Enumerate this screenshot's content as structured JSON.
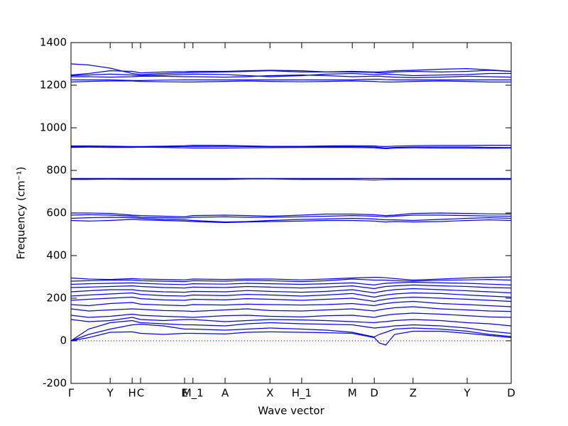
{
  "chart_data": {
    "type": "line",
    "ylabel": "Frequency (cm⁻¹)",
    "xlabel": "Wave vector",
    "xlim": [
      0,
      1
    ],
    "xticks": [
      {
        "value": 0,
        "label": "Γ"
      },
      {
        "value": 0.089,
        "label": "Y"
      },
      {
        "value": 0.139,
        "label": "H"
      },
      {
        "value": 0.158,
        "label": "C"
      },
      {
        "value": 0.258,
        "label": "E"
      },
      {
        "value": 0.277,
        "label": "M_1"
      },
      {
        "value": 0.35,
        "label": "A"
      },
      {
        "value": 0.452,
        "label": "X"
      },
      {
        "value": 0.524,
        "label": "H_1"
      },
      {
        "value": 0.639,
        "label": "M"
      },
      {
        "value": 0.689,
        "label": "D"
      },
      {
        "value": 0.777,
        "label": "Z"
      },
      {
        "value": 0.9,
        "label": "Y"
      },
      {
        "value": 1.0,
        "label": "D"
      }
    ],
    "ylim": [
      -200,
      1400
    ],
    "yticks": [
      -200,
      0,
      200,
      400,
      600,
      800,
      1000,
      1200,
      1400
    ],
    "zero_line": true,
    "zero_line_color": "#0000ff",
    "x": [
      0,
      0.04,
      0.089,
      0.139,
      0.158,
      0.21,
      0.258,
      0.277,
      0.35,
      0.4,
      0.452,
      0.524,
      0.58,
      0.639,
      0.689,
      0.7,
      0.715,
      0.735,
      0.777,
      0.84,
      0.9,
      0.95,
      1.0
    ],
    "series": [
      {
        "color": "#0000ff",
        "values": [
          0,
          15,
          40,
          42,
          35,
          30,
          35,
          35,
          32,
          40,
          42,
          40,
          38,
          35,
          15,
          -10,
          -20,
          30,
          45,
          45,
          35,
          25,
          15
        ]
      },
      {
        "color": "#0000ff",
        "values": [
          0,
          30,
          55,
          75,
          78,
          70,
          55,
          55,
          50,
          55,
          60,
          55,
          50,
          40,
          18,
          30,
          40,
          55,
          60,
          55,
          45,
          30,
          20
        ]
      },
      {
        "color": "#0000ff",
        "values": [
          0,
          55,
          85,
          95,
          85,
          80,
          75,
          75,
          70,
          80,
          85,
          80,
          78,
          75,
          60,
          62,
          65,
          70,
          75,
          70,
          60,
          45,
          35
        ]
      },
      {
        "color": "#0000ff",
        "values": [
          100,
          90,
          95,
          110,
          100,
          95,
          100,
          100,
          90,
          95,
          100,
          98,
          95,
          90,
          85,
          88,
          90,
          95,
          100,
          95,
          85,
          80,
          70
        ]
      },
      {
        "color": "#0000ff",
        "values": [
          120,
          110,
          115,
          125,
          120,
          115,
          112,
          110,
          118,
          120,
          115,
          112,
          118,
          120,
          110,
          115,
          120,
          125,
          130,
          125,
          118,
          112,
          110
        ]
      },
      {
        "color": "#0000ff",
        "values": [
          150,
          140,
          145,
          150,
          148,
          142,
          140,
          138,
          145,
          150,
          142,
          140,
          145,
          150,
          140,
          145,
          150,
          155,
          160,
          150,
          145,
          140,
          138
        ]
      },
      {
        "color": "#0000ff",
        "values": [
          170,
          165,
          175,
          180,
          172,
          168,
          165,
          170,
          168,
          172,
          170,
          168,
          170,
          175,
          165,
          170,
          175,
          180,
          185,
          175,
          170,
          165,
          160
        ]
      },
      {
        "color": "#0000ff",
        "values": [
          190,
          195,
          200,
          205,
          198,
          192,
          190,
          195,
          192,
          198,
          195,
          190,
          195,
          200,
          185,
          190,
          195,
          200,
          205,
          200,
          195,
          190,
          185
        ]
      },
      {
        "color": "#0000ff",
        "values": [
          210,
          215,
          220,
          225,
          218,
          212,
          210,
          215,
          212,
          218,
          215,
          210,
          215,
          222,
          205,
          210,
          215,
          220,
          225,
          222,
          215,
          210,
          205
        ]
      },
      {
        "color": "#0000ff",
        "values": [
          230,
          235,
          240,
          240,
          235,
          230,
          228,
          232,
          230,
          236,
          232,
          228,
          232,
          240,
          225,
          230,
          235,
          240,
          245,
          240,
          235,
          230,
          225
        ]
      },
      {
        "color": "#0000ff",
        "values": [
          250,
          252,
          255,
          258,
          255,
          250,
          248,
          252,
          250,
          255,
          252,
          248,
          252,
          258,
          245,
          250,
          255,
          258,
          262,
          258,
          255,
          250,
          248
        ]
      },
      {
        "color": "#0000ff",
        "values": [
          265,
          268,
          270,
          272,
          270,
          266,
          264,
          268,
          266,
          270,
          268,
          265,
          268,
          272,
          262,
          266,
          270,
          272,
          275,
          272,
          270,
          266,
          262
        ]
      },
      {
        "color": "#0000ff",
        "values": [
          280,
          282,
          285,
          285,
          282,
          280,
          278,
          282,
          280,
          284,
          282,
          278,
          282,
          290,
          285,
          285,
          285,
          282,
          280,
          284,
          286,
          288,
          285
        ]
      },
      {
        "color": "#0000ff",
        "values": [
          295,
          290,
          288,
          292,
          290,
          288,
          286,
          290,
          288,
          290,
          290,
          286,
          290,
          295,
          298,
          298,
          296,
          292,
          285,
          290,
          295,
          298,
          300
        ]
      },
      {
        "color": "#0000ff",
        "values": [
          600,
          600,
          598,
          590,
          588,
          585,
          582,
          588,
          590,
          588,
          585,
          590,
          595,
          595,
          592,
          590,
          588,
          590,
          598,
          600,
          598,
          596,
          595
        ]
      },
      {
        "color": "#0000ff",
        "values": [
          590,
          592,
          590,
          585,
          580,
          578,
          576,
          580,
          582,
          580,
          580,
          582,
          585,
          588,
          585,
          584,
          582,
          585,
          590,
          590,
          588,
          586,
          585
        ]
      },
      {
        "color": "#0000ff",
        "values": [
          575,
          578,
          580,
          578,
          575,
          570,
          568,
          565,
          558,
          560,
          565,
          570,
          572,
          575,
          572,
          570,
          568,
          568,
          565,
          570,
          575,
          578,
          575
        ]
      },
      {
        "color": "#0000ff",
        "values": [
          565,
          562,
          565,
          570,
          568,
          565,
          562,
          560,
          555,
          558,
          560,
          562,
          565,
          565,
          562,
          560,
          558,
          560,
          558,
          560,
          565,
          568,
          565
        ]
      },
      {
        "color": "#0000ff",
        "values": [
          762,
          762,
          762,
          762,
          762,
          762,
          762,
          762,
          762,
          762,
          762,
          762,
          762,
          762,
          762,
          762,
          762,
          762,
          762,
          762,
          762,
          762,
          762
        ]
      },
      {
        "color": "#0000ff",
        "values": [
          758,
          758,
          759,
          758,
          758,
          758,
          758,
          758,
          758,
          760,
          760,
          758,
          758,
          758,
          755,
          756,
          757,
          758,
          758,
          758,
          758,
          758,
          758
        ]
      },
      {
        "color": "#0000ff",
        "values": [
          915,
          915,
          914,
          912,
          912,
          914,
          916,
          918,
          917,
          915,
          913,
          913,
          915,
          916,
          915,
          913,
          912,
          914,
          916,
          917,
          917,
          918,
          918
        ]
      },
      {
        "color": "#0000ff",
        "values": [
          912,
          911,
          910,
          910,
          910,
          911,
          912,
          912,
          913,
          912,
          911,
          911,
          912,
          912,
          910,
          908,
          905,
          908,
          910,
          910,
          910,
          908,
          907
        ]
      },
      {
        "color": "#0000ff",
        "values": [
          908,
          909,
          908,
          908,
          909,
          908,
          906,
          905,
          905,
          906,
          907,
          908,
          908,
          908,
          906,
          904,
          902,
          905,
          906,
          905,
          905,
          904,
          905
        ]
      },
      {
        "color": "#0000ff",
        "values": [
          1300,
          1295,
          1280,
          1255,
          1250,
          1255,
          1258,
          1260,
          1262,
          1265,
          1268,
          1262,
          1262,
          1265,
          1262,
          1262,
          1265,
          1268,
          1270,
          1275,
          1278,
          1272,
          1265
        ]
      },
      {
        "color": "#0000ff",
        "values": [
          1248,
          1255,
          1268,
          1265,
          1258,
          1262,
          1264,
          1265,
          1265,
          1268,
          1270,
          1268,
          1262,
          1262,
          1260,
          1258,
          1258,
          1262,
          1265,
          1262,
          1265,
          1270,
          1265
        ]
      },
      {
        "color": "#0000ff",
        "values": [
          1245,
          1248,
          1252,
          1248,
          1245,
          1248,
          1250,
          1252,
          1250,
          1245,
          1240,
          1245,
          1252,
          1255,
          1250,
          1250,
          1252,
          1250,
          1245,
          1248,
          1250,
          1255,
          1255
        ]
      },
      {
        "color": "#0000ff",
        "values": [
          1240,
          1240,
          1238,
          1240,
          1242,
          1242,
          1240,
          1240,
          1238,
          1240,
          1245,
          1248,
          1245,
          1240,
          1242,
          1242,
          1240,
          1238,
          1235,
          1238,
          1242,
          1240,
          1238
        ]
      },
      {
        "color": "#0000ff",
        "values": [
          1225,
          1225,
          1225,
          1222,
          1222,
          1224,
          1225,
          1225,
          1225,
          1225,
          1225,
          1225,
          1225,
          1225,
          1228,
          1228,
          1226,
          1225,
          1225,
          1225,
          1225,
          1225,
          1225
        ]
      },
      {
        "color": "#0000ff",
        "values": [
          1215,
          1218,
          1220,
          1220,
          1218,
          1216,
          1215,
          1215,
          1218,
          1220,
          1218,
          1216,
          1218,
          1220,
          1218,
          1216,
          1215,
          1215,
          1218,
          1220,
          1218,
          1215,
          1215
        ]
      }
    ]
  }
}
